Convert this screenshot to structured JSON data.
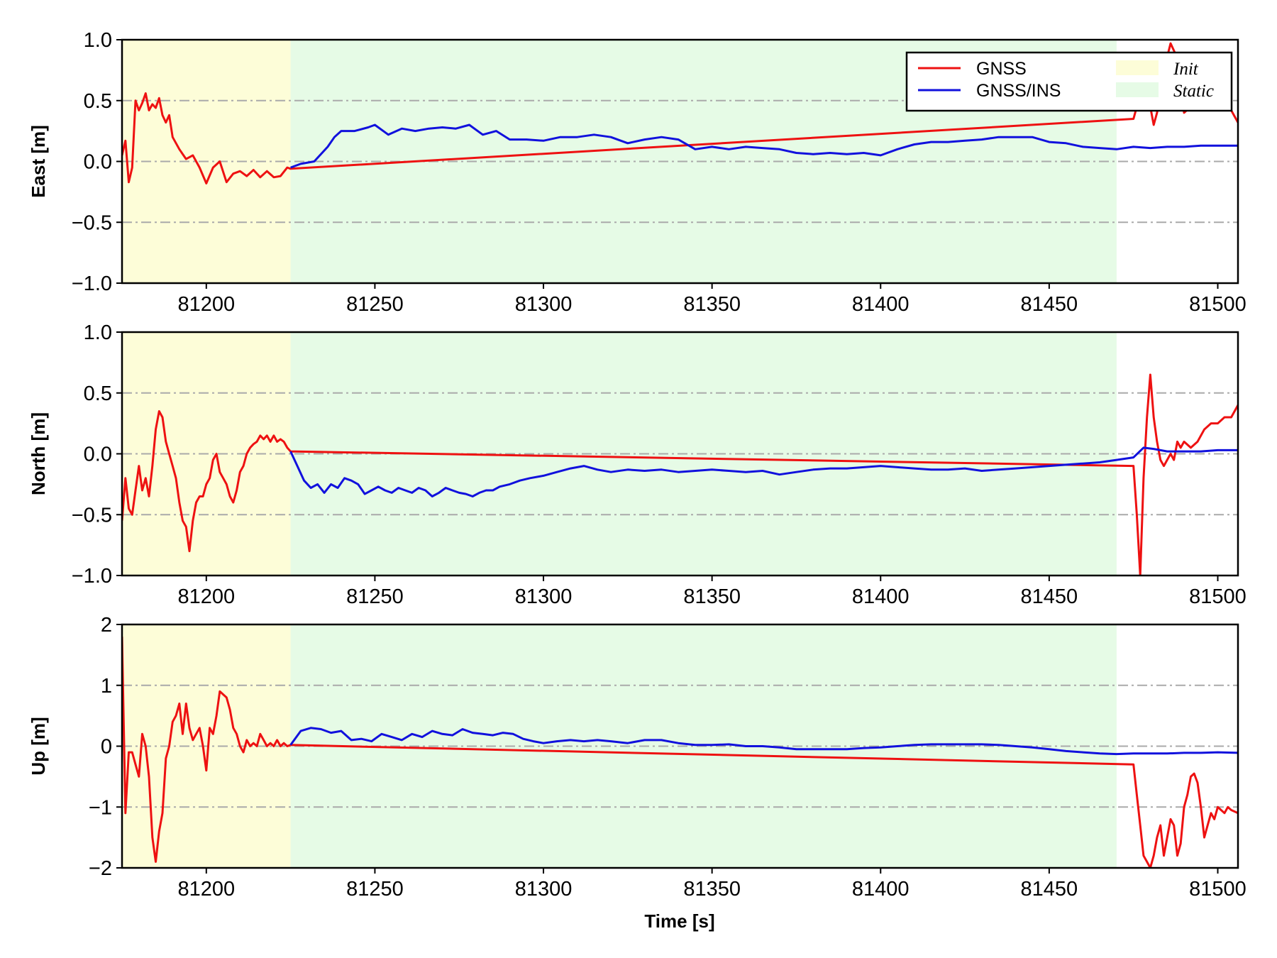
{
  "chart_data": {
    "type": "line",
    "xlabel": "Time [s]",
    "xlim": [
      81175,
      81506
    ],
    "x_ticks": [
      "81200",
      "81250",
      "81300",
      "81350",
      "81400",
      "81450",
      "81500"
    ],
    "shaded_regions": [
      {
        "label": "Init",
        "x_start": 81175,
        "x_end": 81225,
        "color": "#fdfdd8"
      },
      {
        "label": "Static",
        "x_start": 81225,
        "x_end": 81470,
        "color": "#e6fbe6"
      }
    ],
    "series_colors": {
      "GNSS": "#ee1111",
      "GNSS/INS": "#1111dd"
    },
    "legend": {
      "position": "top-right",
      "series": [
        "GNSS",
        "GNSS/INS"
      ],
      "regions": [
        "Init",
        "Static"
      ]
    },
    "grid": "horizontal dash-dot",
    "panels": [
      {
        "ylabel": "East [m]",
        "ylim": [
          -1.0,
          1.0
        ],
        "y_ticks": [
          "1.0",
          "0.5",
          "0.0",
          "−0.5",
          "−1.0"
        ],
        "y_tick_values": [
          1.0,
          0.5,
          0.0,
          -0.5,
          -1.0
        ],
        "series": [
          {
            "name": "GNSS",
            "x": [
              81175,
              81176,
              81177,
              81178,
              81179,
              81180,
              81181,
              81182,
              81183,
              81184,
              81185,
              81186,
              81187,
              81188,
              81189,
              81190,
              81192,
              81194,
              81196,
              81198,
              81200,
              81202,
              81204,
              81206,
              81208,
              81210,
              81212,
              81214,
              81216,
              81218,
              81220,
              81222,
              81224,
              81225,
              81475,
              81477,
              81479,
              81480,
              81481,
              81482,
              81484,
              81486,
              81488,
              81490,
              81492,
              81494,
              81496,
              81498,
              81500,
              81502,
              81504,
              81506
            ],
            "y": [
              0.05,
              0.17,
              -0.17,
              -0.05,
              0.5,
              0.42,
              0.48,
              0.56,
              0.42,
              0.47,
              0.44,
              0.52,
              0.38,
              0.32,
              0.38,
              0.2,
              0.1,
              0.02,
              0.05,
              -0.05,
              -0.18,
              -0.05,
              0.0,
              -0.17,
              -0.1,
              -0.08,
              -0.12,
              -0.07,
              -0.13,
              -0.08,
              -0.13,
              -0.12,
              -0.05,
              -0.06,
              0.35,
              0.55,
              0.7,
              0.45,
              0.3,
              0.4,
              0.75,
              0.97,
              0.85,
              0.4,
              0.45,
              0.58,
              0.72,
              0.8,
              0.5,
              0.55,
              0.42,
              0.32
            ]
          },
          {
            "name": "GNSS/INS",
            "x": [
              81225,
              81228,
              81232,
              81236,
              81238,
              81240,
              81244,
              81248,
              81250,
              81254,
              81258,
              81262,
              81266,
              81270,
              81274,
              81278,
              81282,
              81286,
              81290,
              81295,
              81300,
              81305,
              81310,
              81315,
              81320,
              81325,
              81330,
              81335,
              81340,
              81345,
              81350,
              81355,
              81360,
              81365,
              81370,
              81375,
              81380,
              81385,
              81390,
              81395,
              81400,
              81405,
              81410,
              81415,
              81420,
              81425,
              81430,
              81435,
              81440,
              81445,
              81450,
              81455,
              81460,
              81465,
              81470,
              81475,
              81480,
              81485,
              81490,
              81495,
              81500,
              81506
            ],
            "y": [
              -0.05,
              -0.02,
              0.0,
              0.12,
              0.2,
              0.25,
              0.25,
              0.28,
              0.3,
              0.22,
              0.27,
              0.25,
              0.27,
              0.28,
              0.27,
              0.3,
              0.22,
              0.25,
              0.18,
              0.18,
              0.17,
              0.2,
              0.2,
              0.22,
              0.2,
              0.15,
              0.18,
              0.2,
              0.18,
              0.1,
              0.12,
              0.1,
              0.12,
              0.11,
              0.1,
              0.07,
              0.06,
              0.07,
              0.06,
              0.07,
              0.05,
              0.1,
              0.14,
              0.16,
              0.16,
              0.17,
              0.18,
              0.2,
              0.2,
              0.2,
              0.16,
              0.15,
              0.12,
              0.11,
              0.1,
              0.12,
              0.11,
              0.12,
              0.12,
              0.13,
              0.13,
              0.13
            ]
          }
        ]
      },
      {
        "ylabel": "North [m]",
        "ylim": [
          -1.0,
          1.0
        ],
        "y_ticks": [
          "1.0",
          "0.5",
          "0.0",
          "−0.5",
          "−1.0"
        ],
        "y_tick_values": [
          1.0,
          0.5,
          0.0,
          -0.5,
          -1.0
        ],
        "series": [
          {
            "name": "GNSS",
            "x": [
              81175,
              81176,
              81177,
              81178,
              81179,
              81180,
              81181,
              81182,
              81183,
              81184,
              81185,
              81186,
              81187,
              81188,
              81189,
              81190,
              81191,
              81192,
              81193,
              81194,
              81195,
              81196,
              81197,
              81198,
              81199,
              81200,
              81201,
              81202,
              81203,
              81204,
              81205,
              81206,
              81207,
              81208,
              81209,
              81210,
              81211,
              81212,
              81213,
              81214,
              81215,
              81216,
              81217,
              81218,
              81219,
              81220,
              81221,
              81222,
              81223,
              81224,
              81225,
              81475,
              81476,
              81477,
              81478,
              81479,
              81480,
              81481,
              81482,
              81483,
              81484,
              81485,
              81486,
              81487,
              81488,
              81489,
              81490,
              81492,
              81494,
              81496,
              81498,
              81500,
              81502,
              81504,
              81506
            ],
            "y": [
              -0.55,
              -0.2,
              -0.45,
              -0.5,
              -0.3,
              -0.1,
              -0.3,
              -0.2,
              -0.35,
              -0.1,
              0.2,
              0.35,
              0.3,
              0.1,
              0.0,
              -0.1,
              -0.2,
              -0.4,
              -0.55,
              -0.6,
              -0.8,
              -0.55,
              -0.4,
              -0.35,
              -0.35,
              -0.25,
              -0.2,
              -0.05,
              0.0,
              -0.15,
              -0.2,
              -0.25,
              -0.35,
              -0.4,
              -0.3,
              -0.15,
              -0.1,
              0.0,
              0.05,
              0.08,
              0.1,
              0.15,
              0.12,
              0.15,
              0.1,
              0.15,
              0.1,
              0.12,
              0.1,
              0.05,
              0.02,
              -0.1,
              -0.5,
              -1.0,
              -0.2,
              0.3,
              0.65,
              0.3,
              0.1,
              -0.05,
              -0.1,
              -0.05,
              0.0,
              -0.05,
              0.1,
              0.05,
              0.1,
              0.05,
              0.1,
              0.2,
              0.25,
              0.25,
              0.3,
              0.3,
              0.4
            ]
          },
          {
            "name": "GNSS/INS",
            "x": [
              81225,
              81227,
              81229,
              81231,
              81233,
              81235,
              81237,
              81239,
              81241,
              81243,
              81245,
              81247,
              81249,
              81251,
              81253,
              81255,
              81257,
              81259,
              81261,
              81263,
              81265,
              81267,
              81269,
              81271,
              81273,
              81275,
              81277,
              81279,
              81281,
              81283,
              81285,
              81287,
              81290,
              81293,
              81296,
              81300,
              81304,
              81308,
              81312,
              81316,
              81320,
              81325,
              81330,
              81335,
              81340,
              81345,
              81350,
              81355,
              81360,
              81365,
              81370,
              81375,
              81380,
              81385,
              81390,
              81395,
              81400,
              81405,
              81410,
              81415,
              81420,
              81425,
              81430,
              81435,
              81440,
              81445,
              81450,
              81455,
              81460,
              81465,
              81470,
              81475,
              81478,
              81481,
              81485,
              81490,
              81495,
              81500,
              81506
            ],
            "y": [
              0.02,
              -0.1,
              -0.22,
              -0.28,
              -0.25,
              -0.32,
              -0.25,
              -0.28,
              -0.2,
              -0.22,
              -0.25,
              -0.33,
              -0.3,
              -0.27,
              -0.3,
              -0.32,
              -0.28,
              -0.3,
              -0.32,
              -0.28,
              -0.3,
              -0.35,
              -0.32,
              -0.28,
              -0.3,
              -0.32,
              -0.33,
              -0.35,
              -0.32,
              -0.3,
              -0.3,
              -0.27,
              -0.25,
              -0.22,
              -0.2,
              -0.18,
              -0.15,
              -0.12,
              -0.1,
              -0.13,
              -0.15,
              -0.13,
              -0.14,
              -0.13,
              -0.15,
              -0.14,
              -0.13,
              -0.14,
              -0.15,
              -0.14,
              -0.17,
              -0.15,
              -0.13,
              -0.12,
              -0.12,
              -0.11,
              -0.1,
              -0.11,
              -0.12,
              -0.13,
              -0.13,
              -0.12,
              -0.14,
              -0.13,
              -0.12,
              -0.11,
              -0.1,
              -0.09,
              -0.08,
              -0.07,
              -0.05,
              -0.03,
              0.05,
              0.04,
              0.02,
              0.02,
              0.02,
              0.03,
              0.03
            ]
          }
        ]
      },
      {
        "ylabel": "Up [m]",
        "ylim": [
          -2,
          2
        ],
        "y_ticks": [
          "2",
          "1",
          "0",
          "−1",
          "−2"
        ],
        "y_tick_values": [
          2,
          1,
          0,
          -1,
          -2
        ],
        "series": [
          {
            "name": "GNSS",
            "x": [
              81175,
              81176,
              81177,
              81178,
              81179,
              81180,
              81181,
              81182,
              81183,
              81184,
              81185,
              81186,
              81187,
              81188,
              81189,
              81190,
              81191,
              81192,
              81193,
              81194,
              81195,
              81196,
              81197,
              81198,
              81199,
              81200,
              81201,
              81202,
              81203,
              81204,
              81205,
              81206,
              81207,
              81208,
              81209,
              81210,
              81211,
              81212,
              81213,
              81214,
              81215,
              81216,
              81217,
              81218,
              81219,
              81220,
              81221,
              81222,
              81223,
              81224,
              81225,
              81475,
              81476,
              81477,
              81478,
              81479,
              81480,
              81481,
              81482,
              81483,
              81484,
              81485,
              81486,
              81487,
              81488,
              81489,
              81490,
              81491,
              81492,
              81493,
              81494,
              81495,
              81496,
              81497,
              81498,
              81499,
              81500,
              81501,
              81502,
              81503,
              81504,
              81506
            ],
            "y": [
              1.8,
              -1.1,
              -0.1,
              -0.1,
              -0.3,
              -0.5,
              0.2,
              0.0,
              -0.5,
              -1.5,
              -1.9,
              -1.4,
              -1.1,
              -0.2,
              0.0,
              0.4,
              0.5,
              0.7,
              0.2,
              0.7,
              0.3,
              0.1,
              0.2,
              0.3,
              0.0,
              -0.4,
              0.3,
              0.2,
              0.5,
              0.9,
              0.85,
              0.8,
              0.6,
              0.3,
              0.2,
              0.0,
              -0.1,
              0.1,
              0.0,
              0.05,
              0.0,
              0.2,
              0.1,
              0.0,
              0.05,
              0.0,
              0.1,
              0.0,
              0.05,
              0.0,
              0.02,
              -0.3,
              -0.8,
              -1.3,
              -1.8,
              -1.9,
              -2.0,
              -1.8,
              -1.5,
              -1.3,
              -1.8,
              -1.5,
              -1.2,
              -1.3,
              -1.8,
              -1.6,
              -1.0,
              -0.8,
              -0.5,
              -0.45,
              -0.6,
              -1.0,
              -1.5,
              -1.3,
              -1.1,
              -1.2,
              -1.0,
              -1.05,
              -1.1,
              -1.0,
              -1.05,
              -1.1
            ]
          },
          {
            "name": "GNSS/INS",
            "x": [
              81225,
              81228,
              81231,
              81234,
              81237,
              81240,
              81243,
              81246,
              81249,
              81252,
              81255,
              81258,
              81261,
              81264,
              81267,
              81270,
              81273,
              81276,
              81279,
              81282,
              81285,
              81288,
              81291,
              81294,
              81297,
              81300,
              81304,
              81308,
              81312,
              81316,
              81320,
              81325,
              81330,
              81335,
              81340,
              81345,
              81350,
              81355,
              81360,
              81365,
              81370,
              81375,
              81380,
              81385,
              81390,
              81395,
              81400,
              81405,
              81410,
              81415,
              81420,
              81425,
              81430,
              81435,
              81440,
              81445,
              81450,
              81455,
              81460,
              81465,
              81470,
              81475,
              81480,
              81485,
              81490,
              81495,
              81500,
              81506
            ],
            "y": [
              0.02,
              0.25,
              0.3,
              0.28,
              0.22,
              0.25,
              0.1,
              0.12,
              0.08,
              0.2,
              0.15,
              0.1,
              0.2,
              0.15,
              0.25,
              0.2,
              0.18,
              0.28,
              0.22,
              0.2,
              0.18,
              0.22,
              0.2,
              0.12,
              0.08,
              0.05,
              0.08,
              0.1,
              0.08,
              0.1,
              0.08,
              0.05,
              0.1,
              0.1,
              0.05,
              0.02,
              0.02,
              0.03,
              0.0,
              0.0,
              -0.02,
              -0.05,
              -0.05,
              -0.05,
              -0.05,
              -0.03,
              -0.02,
              0.0,
              0.02,
              0.03,
              0.03,
              0.03,
              0.03,
              0.02,
              0.0,
              -0.02,
              -0.05,
              -0.08,
              -0.1,
              -0.12,
              -0.13,
              -0.12,
              -0.12,
              -0.12,
              -0.11,
              -0.11,
              -0.1,
              -0.11
            ]
          }
        ]
      }
    ]
  }
}
